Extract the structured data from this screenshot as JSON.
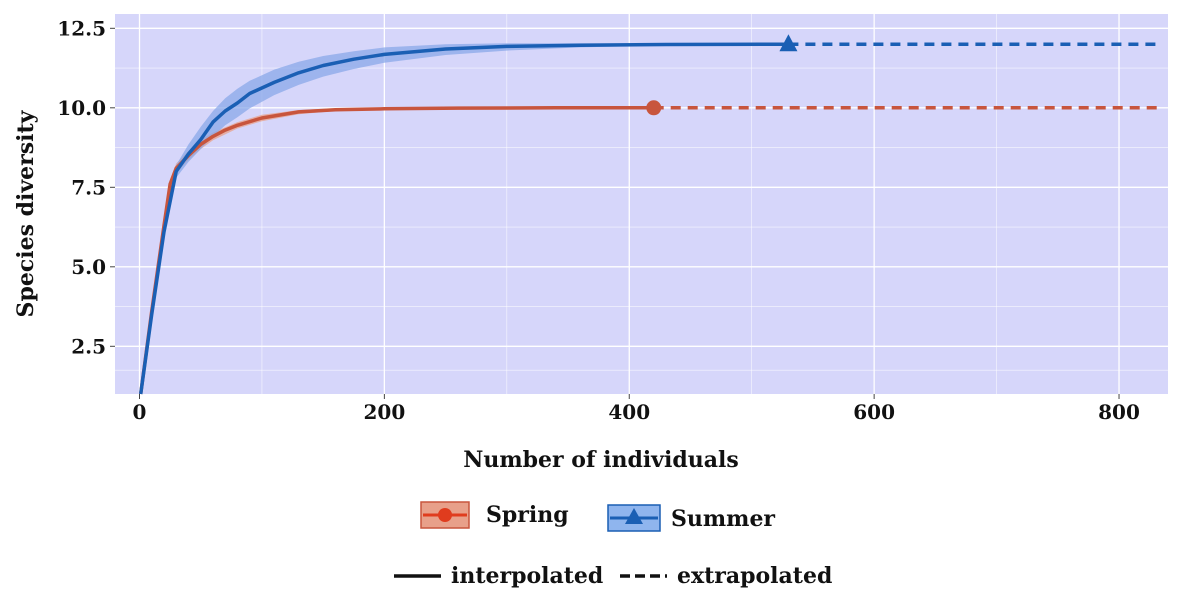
{
  "chart_data": {
    "type": "line",
    "xlabel": "Number of individuals",
    "ylabel": "Species diversity",
    "xlim": [
      -20,
      840
    ],
    "ylim": [
      1,
      12.95
    ],
    "x_ticks": [
      "0",
      "200",
      "400",
      "600",
      "800"
    ],
    "x_tick_values": [
      0,
      200,
      400,
      600,
      800
    ],
    "y_ticks": [
      "2.5",
      "5.0",
      "7.5",
      "10.0",
      "12.5"
    ],
    "y_tick_values": [
      2.5,
      5.0,
      7.5,
      10.0,
      12.5
    ],
    "grid": true,
    "panel_color": "#d6d6fa",
    "series": [
      {
        "name": "Spring",
        "color": "#c8553d",
        "band_color": "#e8a08a",
        "marker": "circle",
        "observed": [
          420,
          10
        ],
        "interpolated": [
          [
            1,
            1
          ],
          [
            10,
            3.6
          ],
          [
            20,
            6.3
          ],
          [
            25,
            7.6
          ],
          [
            30,
            8.1
          ],
          [
            40,
            8.5
          ],
          [
            50,
            8.85
          ],
          [
            60,
            9.1
          ],
          [
            70,
            9.3
          ],
          [
            80,
            9.45
          ],
          [
            100,
            9.68
          ],
          [
            130,
            9.87
          ],
          [
            160,
            9.94
          ],
          [
            200,
            9.97
          ],
          [
            260,
            9.99
          ],
          [
            340,
            10
          ],
          [
            420,
            10
          ]
        ],
        "band_upper": [
          [
            25,
            7.75
          ],
          [
            30,
            8.25
          ],
          [
            40,
            8.65
          ],
          [
            50,
            9.0
          ],
          [
            60,
            9.22
          ],
          [
            80,
            9.55
          ],
          [
            100,
            9.78
          ],
          [
            130,
            9.93
          ],
          [
            160,
            9.98
          ],
          [
            200,
            10.0
          ],
          [
            420,
            10.0
          ]
        ],
        "band_lower": [
          [
            25,
            7.45
          ],
          [
            30,
            7.95
          ],
          [
            40,
            8.35
          ],
          [
            50,
            8.7
          ],
          [
            60,
            8.98
          ],
          [
            80,
            9.35
          ],
          [
            100,
            9.58
          ],
          [
            130,
            9.8
          ],
          [
            160,
            9.9
          ],
          [
            200,
            9.95
          ],
          [
            420,
            10.0
          ]
        ],
        "extrapolated": [
          [
            420,
            10
          ],
          [
            835,
            10
          ]
        ]
      },
      {
        "name": "Summer",
        "color": "#1a5fb4",
        "band_color": "#8aa8e8",
        "marker": "triangle",
        "observed": [
          530,
          12
        ],
        "interpolated": [
          [
            1,
            1
          ],
          [
            10,
            3.5
          ],
          [
            20,
            6.1
          ],
          [
            30,
            8.0
          ],
          [
            40,
            8.55
          ],
          [
            50,
            9.0
          ],
          [
            60,
            9.55
          ],
          [
            70,
            9.9
          ],
          [
            80,
            10.15
          ],
          [
            90,
            10.45
          ],
          [
            110,
            10.8
          ],
          [
            130,
            11.1
          ],
          [
            150,
            11.33
          ],
          [
            175,
            11.53
          ],
          [
            200,
            11.68
          ],
          [
            250,
            11.85
          ],
          [
            300,
            11.93
          ],
          [
            360,
            11.97
          ],
          [
            430,
            11.99
          ],
          [
            530,
            12
          ]
        ],
        "band_upper": [
          [
            30,
            8.2
          ],
          [
            40,
            8.85
          ],
          [
            50,
            9.4
          ],
          [
            60,
            9.9
          ],
          [
            70,
            10.3
          ],
          [
            80,
            10.6
          ],
          [
            90,
            10.85
          ],
          [
            110,
            11.2
          ],
          [
            130,
            11.45
          ],
          [
            150,
            11.63
          ],
          [
            175,
            11.78
          ],
          [
            200,
            11.9
          ],
          [
            250,
            12.0
          ],
          [
            300,
            12.03
          ],
          [
            360,
            12.03
          ],
          [
            430,
            12.02
          ],
          [
            530,
            12.0
          ]
        ],
        "band_lower": [
          [
            30,
            7.8
          ],
          [
            40,
            8.3
          ],
          [
            50,
            8.7
          ],
          [
            60,
            9.1
          ],
          [
            70,
            9.45
          ],
          [
            80,
            9.7
          ],
          [
            90,
            9.98
          ],
          [
            110,
            10.4
          ],
          [
            130,
            10.72
          ],
          [
            150,
            10.98
          ],
          [
            175,
            11.22
          ],
          [
            200,
            11.42
          ],
          [
            250,
            11.66
          ],
          [
            300,
            11.8
          ],
          [
            360,
            11.9
          ],
          [
            430,
            11.96
          ],
          [
            530,
            12.0
          ]
        ],
        "extrapolated": [
          [
            530,
            12
          ],
          [
            835,
            12
          ]
        ]
      }
    ]
  },
  "legend": {
    "spring_label": "Spring",
    "summer_label": "Summer",
    "interpolated_label": "interpolated",
    "extrapolated_label": "extrapolated"
  }
}
